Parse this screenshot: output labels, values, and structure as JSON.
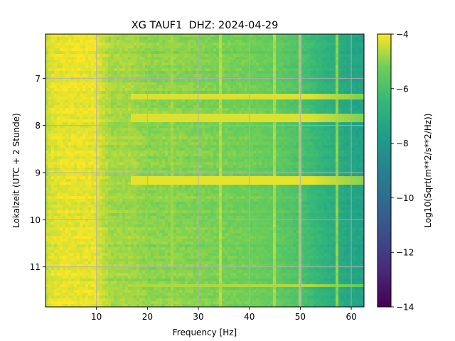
{
  "chart_data": {
    "type": "heatmap",
    "title": "XG TAUF1  DHZ: 2024-04-29",
    "xlabel": "Frequency [Hz]",
    "ylabel": "Lokalzeit (UTC + 2 Stunde)",
    "colorbar_label": "Log10(Sqrt(m**2/s**2/Hz))",
    "colormap": "viridis",
    "x_range": [
      0,
      62.5
    ],
    "y_range": [
      6.06,
      11.85
    ],
    "y_inverted": true,
    "c_range": [
      -14,
      -4
    ],
    "x_ticks": [
      10,
      20,
      30,
      40,
      50,
      60
    ],
    "y_ticks": [
      7,
      8,
      9,
      10,
      11
    ],
    "c_ticks": [
      -4,
      -6,
      -8,
      -10,
      -12,
      -14
    ],
    "grid": true,
    "freq_profile_hz": [
      0,
      1,
      3,
      10,
      11,
      13,
      17,
      20,
      25,
      30,
      35,
      40,
      45,
      50,
      55,
      60,
      62.5
    ],
    "freq_profile_value": [
      -4.6,
      -4.3,
      -4.2,
      -4.2,
      -4.5,
      -4.8,
      -4.8,
      -5.0,
      -5.0,
      -5.1,
      -5.2,
      -5.3,
      -5.5,
      -6.0,
      -6.8,
      -7.4,
      -7.6
    ],
    "bright_bands": [
      {
        "start": 7.3,
        "end": 7.44,
        "value": -4.3
      },
      {
        "start": 7.76,
        "end": 7.9,
        "value": -4.3
      },
      {
        "start": 9.07,
        "end": 9.25,
        "value": -4.2
      },
      {
        "start": 11.35,
        "end": 11.45,
        "value": -4.7
      },
      {
        "start": 11.58,
        "end": 11.63,
        "value": -4.8
      }
    ],
    "narrow_lines": [
      {
        "freq": 25.0,
        "value": -4.8
      },
      {
        "freq": 34.4,
        "value": -4.6
      },
      {
        "freq": 45.0,
        "value": -4.7
      },
      {
        "freq": 49.9,
        "value": -4.8
      },
      {
        "freq": 57.0,
        "value": -5.0
      }
    ]
  }
}
